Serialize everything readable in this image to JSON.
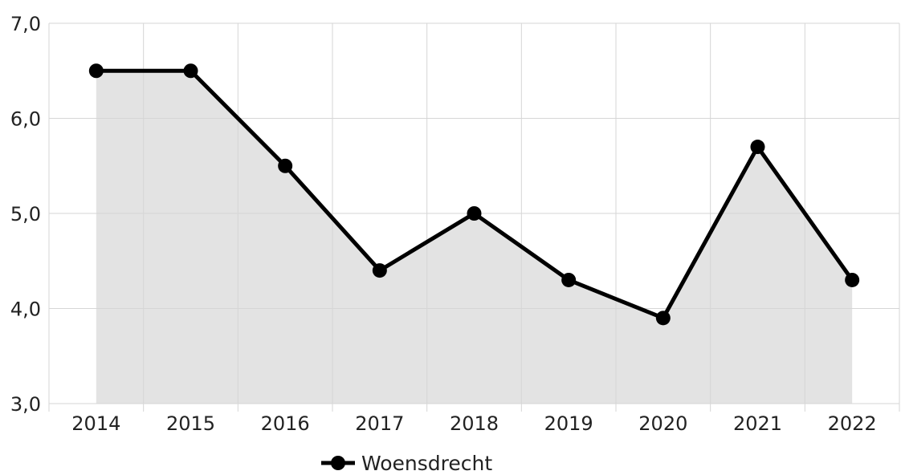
{
  "chart_data": {
    "type": "area",
    "title": "",
    "xlabel": "",
    "ylabel": "",
    "x": [
      "2014",
      "2015",
      "2016",
      "2017",
      "2018",
      "2019",
      "2020",
      "2021",
      "2022"
    ],
    "series": [
      {
        "name": "Woensdrecht",
        "values": [
          6.5,
          6.5,
          5.5,
          4.4,
          5.0,
          4.3,
          3.9,
          5.7,
          4.3
        ]
      }
    ],
    "ylim": [
      3.0,
      7.0
    ],
    "y_ticks": [
      "3,0",
      "4,0",
      "5,0",
      "6,0",
      "7,0"
    ],
    "grid": true,
    "legend_position": "bottom-center",
    "colors": {
      "line": "#000000",
      "fill": "#e3e3e3",
      "grid": "#d6d6d6",
      "text": "#222222"
    }
  }
}
